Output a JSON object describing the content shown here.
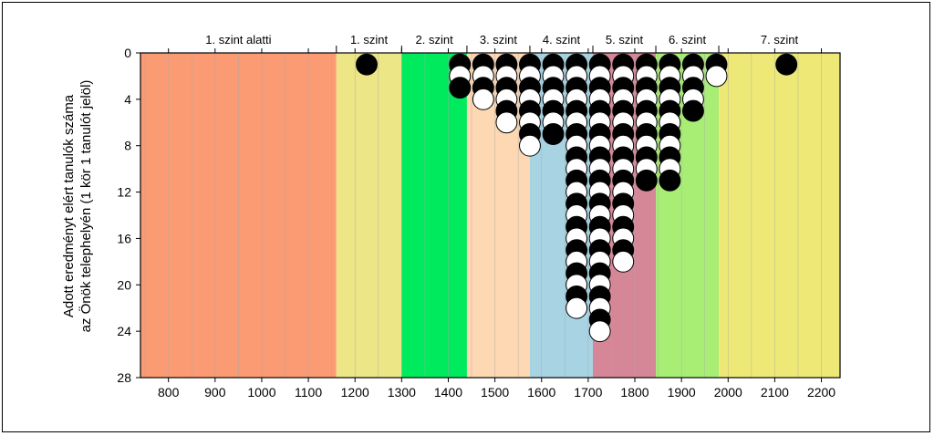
{
  "chart_data": {
    "type": "scatter",
    "ylabel_line1": "Adott eredményt elért tanulók száma",
    "ylabel_line2": "az Önök telephelyén (1 kör 1 tanulót jelöl)",
    "xlim": [
      740,
      2240
    ],
    "ylim": [
      0,
      28
    ],
    "y_inverted": true,
    "x_ticks": [
      800,
      900,
      1000,
      1100,
      1200,
      1300,
      1400,
      1500,
      1600,
      1700,
      1800,
      1900,
      2000,
      2100,
      2200
    ],
    "y_ticks": [
      0,
      4,
      8,
      12,
      16,
      20,
      24,
      28
    ],
    "minor_gridlines_x_step": 50,
    "levels": [
      {
        "label": "1. szint alatti",
        "from": 740,
        "to": 1160,
        "color": "#fb9b73"
      },
      {
        "label": "1. szint",
        "from": 1160,
        "to": 1300,
        "color": "#ece686"
      },
      {
        "label": "2. szint",
        "from": 1300,
        "to": 1440,
        "color": "#00ea5e"
      },
      {
        "label": "3. szint",
        "from": 1440,
        "to": 1575,
        "color": "#fed8b3"
      },
      {
        "label": "4. szint",
        "from": 1575,
        "to": 1710,
        "color": "#a8d3e3"
      },
      {
        "label": "5. szint",
        "from": 1710,
        "to": 1845,
        "color": "#d58797"
      },
      {
        "label": "6. szint",
        "from": 1845,
        "to": 1980,
        "color": "#a8ee75"
      },
      {
        "label": "7. szint",
        "from": 1980,
        "to": 2240,
        "color": "#eee977"
      }
    ],
    "columns": [
      {
        "x": 1225,
        "count": 1
      },
      {
        "x": 1425,
        "count": 3
      },
      {
        "x": 1475,
        "count": 4
      },
      {
        "x": 1525,
        "count": 6
      },
      {
        "x": 1575,
        "count": 8
      },
      {
        "x": 1625,
        "count": 7
      },
      {
        "x": 1675,
        "count": 22
      },
      {
        "x": 1725,
        "count": 24
      },
      {
        "x": 1775,
        "count": 18
      },
      {
        "x": 1825,
        "count": 11
      },
      {
        "x": 1875,
        "count": 11
      },
      {
        "x": 1925,
        "count": 5
      },
      {
        "x": 1975,
        "count": 2
      },
      {
        "x": 2125,
        "count": 1
      }
    ],
    "marker_colors": {
      "dark": "#000000",
      "light": "#ffffff"
    }
  }
}
